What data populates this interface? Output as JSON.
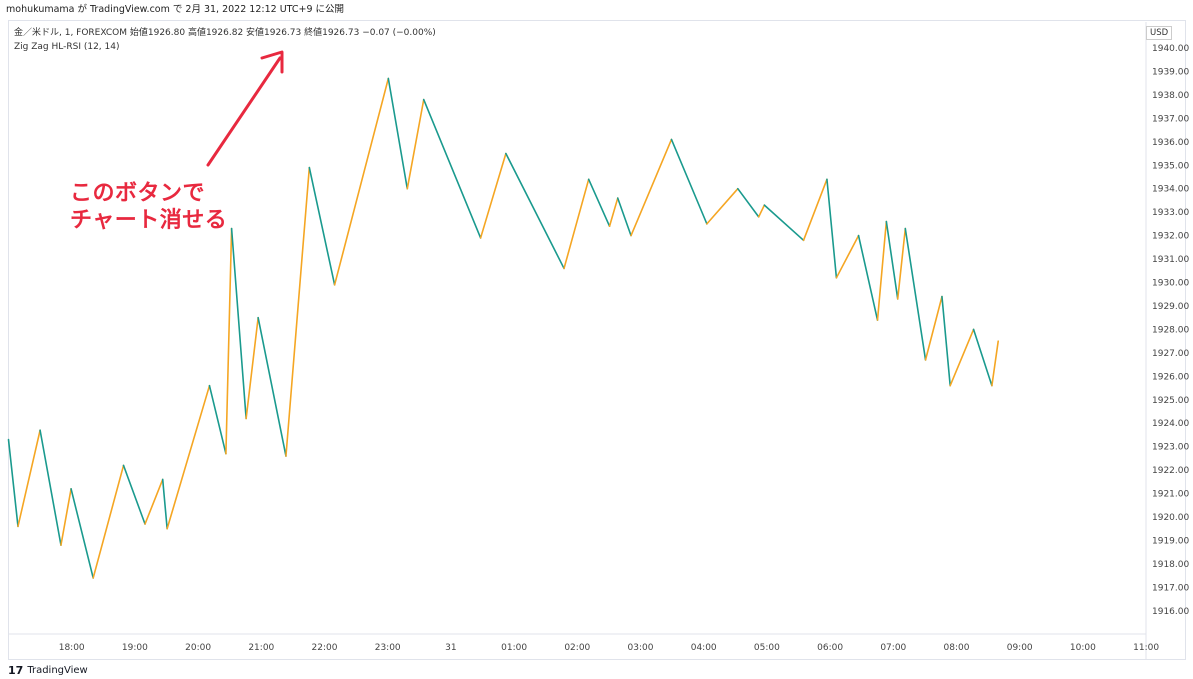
{
  "header": {
    "publish_line": "mohukumama が TradingView.com で 2月 31, 2022 12:12 UTC+9 に公開"
  },
  "legend": {
    "symbol_line": "金／米ドル, 1, FOREXCOM 始値1926.80 高値1926.82 安値1926.73 終値1926.73 −0.07 (−0.00%)",
    "indicator_line": "Zig Zag HL-RSI (12, 14)"
  },
  "annotation": {
    "line1": "このボタンで",
    "line2": "チャート消せる",
    "color": "#e8293f"
  },
  "price_axis": {
    "currency": "USD",
    "ticks": [
      "1940.00",
      "1939.00",
      "1938.00",
      "1937.00",
      "1936.00",
      "1935.00",
      "1934.00",
      "1933.00",
      "1932.00",
      "1931.00",
      "1930.00",
      "1929.00",
      "1928.00",
      "1927.00",
      "1926.00",
      "1925.00",
      "1924.00",
      "1923.00",
      "1922.00",
      "1921.00",
      "1920.00",
      "1919.00",
      "1918.00",
      "1917.00",
      "1916.00"
    ]
  },
  "time_axis": {
    "ticks": [
      "18:00",
      "19:00",
      "20:00",
      "21:00",
      "22:00",
      "23:00",
      "31",
      "01:00",
      "02:00",
      "03:00",
      "04:00",
      "05:00",
      "06:00",
      "07:00",
      "08:00",
      "09:00",
      "10:00",
      "11:00"
    ]
  },
  "footer": {
    "brand": "TradingView"
  },
  "chart_data": {
    "type": "line",
    "x_unit": "hours since 17:00",
    "ylim": [
      1915.4,
      1941.2
    ],
    "up_color": "#f5a623",
    "down_color": "#1a9a8e",
    "series": [
      {
        "x": [
          0.0,
          0.15,
          0.5,
          0.83,
          0.99,
          1.34,
          1.82,
          2.16,
          2.44,
          2.51,
          3.18,
          3.44,
          3.53,
          3.76,
          3.95,
          4.39,
          4.76,
          5.16,
          6.01,
          6.31,
          6.57,
          7.47,
          7.87,
          8.79,
          9.18,
          9.51,
          9.64,
          9.85,
          10.49,
          11.05,
          11.54,
          11.87,
          11.96,
          12.58,
          12.95,
          13.1,
          13.45,
          13.75,
          13.89,
          14.07,
          14.19,
          14.51,
          14.77,
          14.9,
          15.27,
          15.56,
          15.66
        ],
        "y": [
          1923.3,
          1919.6,
          1923.7,
          1918.8,
          1921.2,
          1917.4,
          1922.2,
          1919.7,
          1921.6,
          1919.5,
          1925.6,
          1922.7,
          1932.3,
          1924.2,
          1928.5,
          1922.6,
          1934.9,
          1929.9,
          1938.7,
          1934.0,
          1937.8,
          1931.9,
          1935.5,
          1930.6,
          1934.4,
          1932.4,
          1933.6,
          1932.0,
          1936.1,
          1932.5,
          1934.0,
          1932.8,
          1933.3,
          1931.8,
          1934.4,
          1930.2,
          1932.0,
          1928.4,
          1932.6,
          1929.3,
          1932.3,
          1926.7,
          1929.4,
          1925.6,
          1928.0,
          1925.6,
          1927.5
        ]
      }
    ]
  }
}
